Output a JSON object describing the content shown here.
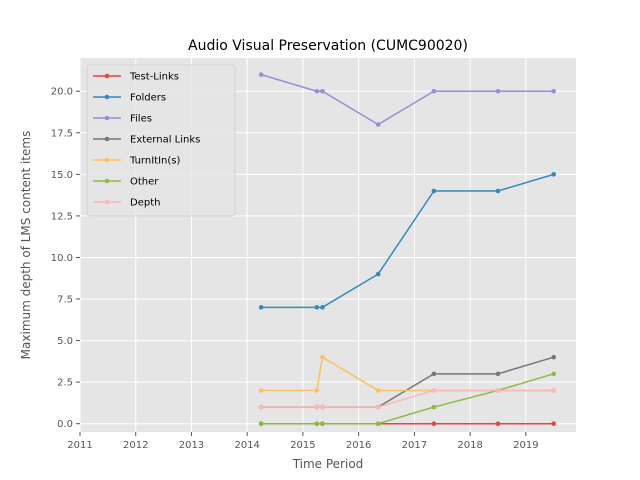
{
  "chart_data": {
    "type": "line",
    "title": "Audio Visual Preservation (CUMC90020)",
    "xlabel": "Time Period",
    "ylabel": "Maximum depth of LMS content items",
    "xlim": [
      2011,
      2019.9
    ],
    "ylim": [
      -0.5,
      22.0
    ],
    "xticks": [
      2011,
      2012,
      2013,
      2014,
      2015,
      2016,
      2017,
      2018,
      2019
    ],
    "yticks": [
      0.0,
      2.5,
      5.0,
      7.5,
      10.0,
      12.5,
      15.0,
      17.5,
      20.0
    ],
    "grid": true,
    "legend_position": "top-left",
    "x": [
      2014.25,
      2015.25,
      2015.35,
      2016.35,
      2017.35,
      2018.5,
      2019.5
    ],
    "series": [
      {
        "name": "Test-Links",
        "color": "#e24a33",
        "values": [
          0,
          0,
          0,
          0,
          0,
          0,
          0
        ]
      },
      {
        "name": "Folders",
        "color": "#348abd",
        "values": [
          7,
          7,
          7,
          9,
          14,
          14,
          15
        ]
      },
      {
        "name": "Files",
        "color": "#988ed5",
        "values": [
          21,
          20,
          20,
          18,
          20,
          20,
          20
        ]
      },
      {
        "name": "External Links",
        "color": "#777777",
        "values": [
          1,
          1,
          1,
          1,
          3,
          3,
          4
        ]
      },
      {
        "name": "TurnItIn(s)",
        "color": "#fbc15e",
        "values": [
          2,
          2,
          4,
          2,
          2,
          2,
          2
        ]
      },
      {
        "name": "Other",
        "color": "#8eba42",
        "values": [
          0,
          0,
          0,
          0,
          1,
          2,
          3
        ]
      },
      {
        "name": "Depth",
        "color": "#ffb5b8",
        "values": [
          1,
          1,
          1,
          1,
          2,
          2,
          2
        ]
      }
    ]
  }
}
